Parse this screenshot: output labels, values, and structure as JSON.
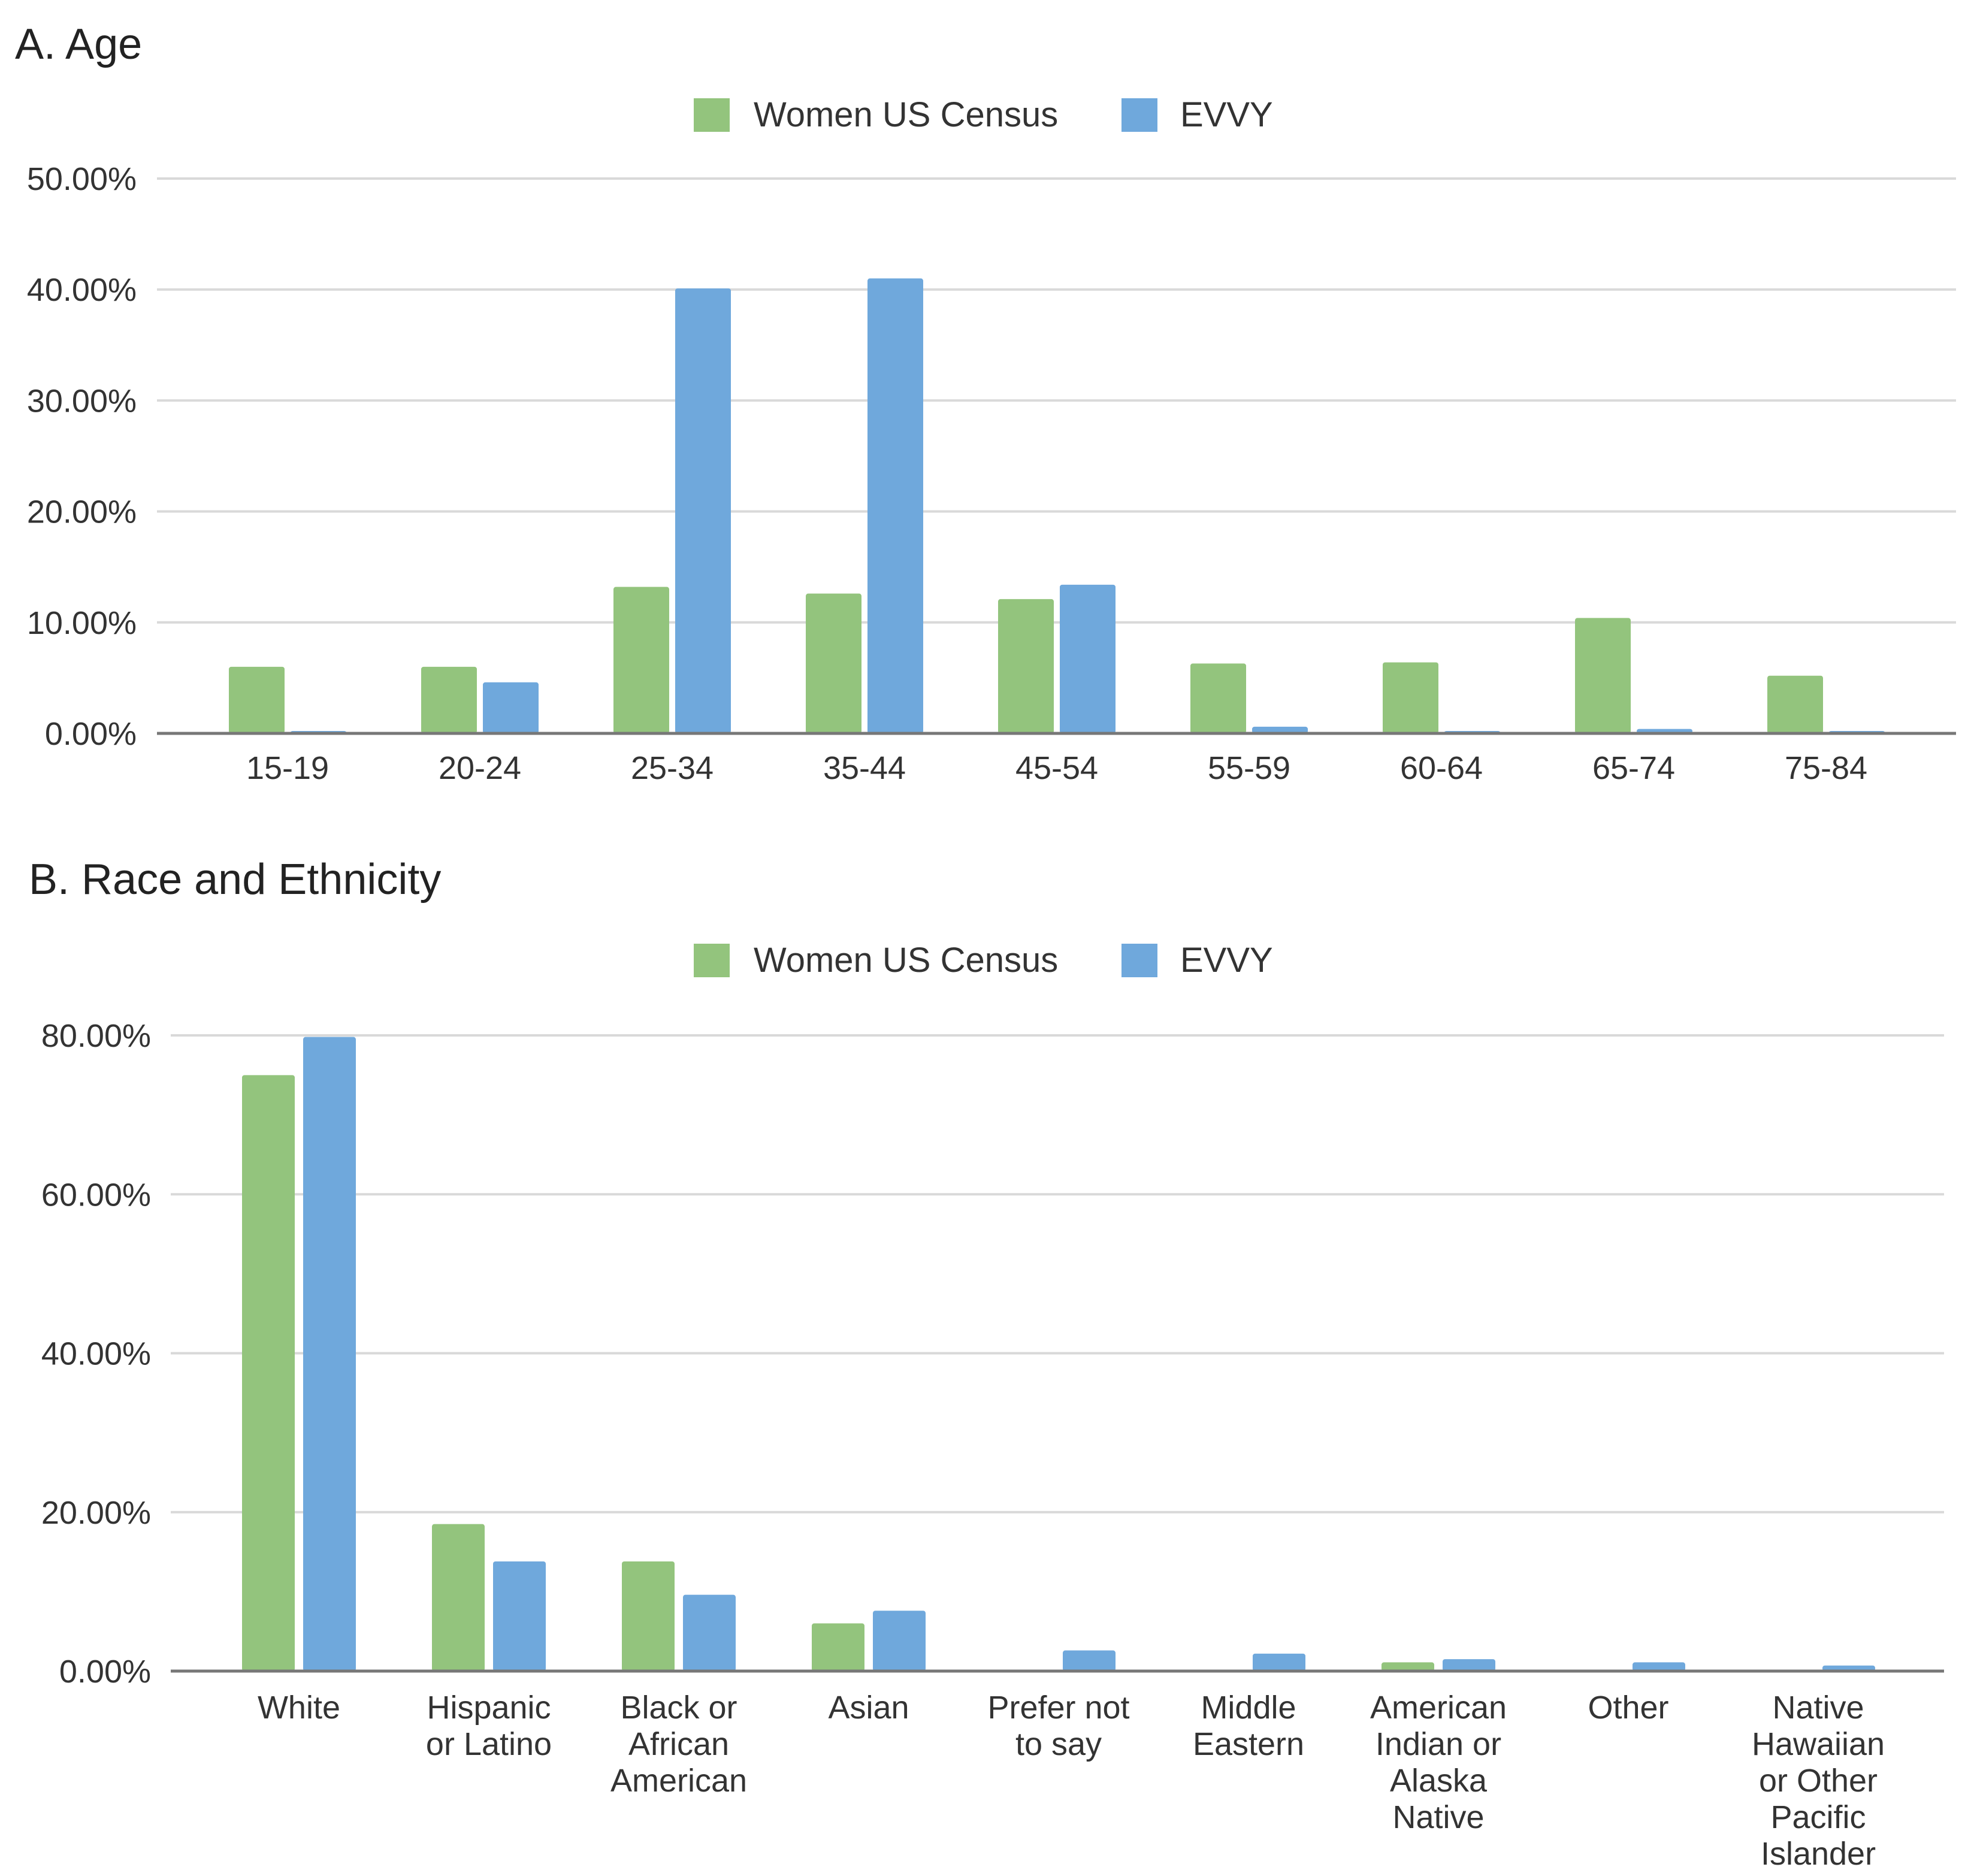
{
  "chart_data": [
    {
      "type": "bar",
      "title": "A. Age",
      "xlabel": "",
      "ylabel": "",
      "ylim": [
        0,
        50
      ],
      "yticks": [
        "0.00%",
        "10.00%",
        "20.00%",
        "30.00%",
        "40.00%",
        "50.00%"
      ],
      "grid": true,
      "legend_position": "top-center",
      "categories": [
        "15-19",
        "20-24",
        "25-34",
        "35-44",
        "45-54",
        "55-59",
        "60-64",
        "65-74",
        "75-84"
      ],
      "series": [
        {
          "name": "Women US Census",
          "color": "#93c47d",
          "values": [
            6.0,
            6.0,
            13.2,
            12.6,
            12.1,
            6.3,
            6.4,
            10.4,
            5.2
          ]
        },
        {
          "name": "EVVY",
          "color": "#6fa8dc",
          "values": [
            0.1,
            4.6,
            40.1,
            41.0,
            13.4,
            0.6,
            0.1,
            0.4,
            0.1
          ]
        }
      ]
    },
    {
      "type": "bar",
      "title": "B. Race and Ethnicity",
      "xlabel": "",
      "ylabel": "",
      "ylim": [
        0,
        80
      ],
      "yticks": [
        "0.00%",
        "20.00%",
        "40.00%",
        "60.00%",
        "80.00%"
      ],
      "grid": true,
      "legend_position": "top-center",
      "categories": [
        [
          "White"
        ],
        [
          "Hispanic",
          "or Latino"
        ],
        [
          "Black or",
          "African",
          "American"
        ],
        [
          "Asian"
        ],
        [
          "Prefer not",
          "to say"
        ],
        [
          "Middle",
          "Eastern"
        ],
        [
          "American",
          "Indian or",
          "Alaska",
          "Native"
        ],
        [
          "Other"
        ],
        [
          "Native",
          "Hawaiian",
          "or Other",
          "Pacific",
          "Islander"
        ]
      ],
      "series": [
        {
          "name": "Women US Census",
          "color": "#93c47d",
          "values": [
            75.0,
            18.5,
            13.8,
            6.0,
            0,
            0,
            1.1,
            0,
            0
          ]
        },
        {
          "name": "EVVY",
          "color": "#6fa8dc",
          "values": [
            79.8,
            13.8,
            9.6,
            7.6,
            2.6,
            2.2,
            1.5,
            1.1,
            0.7
          ]
        }
      ]
    }
  ]
}
